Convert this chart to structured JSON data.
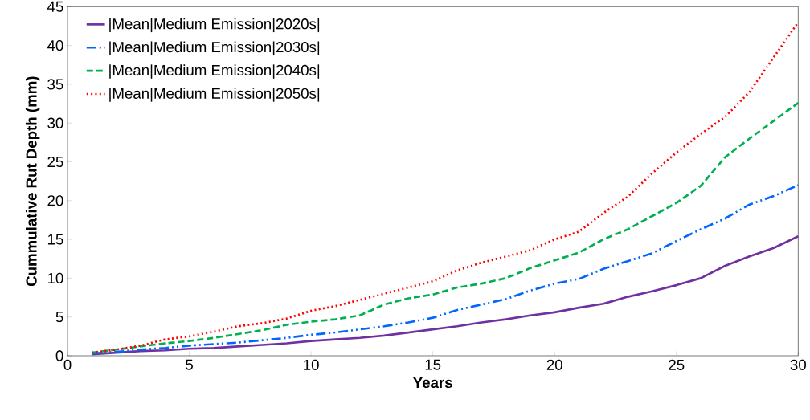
{
  "chart_data": {
    "type": "line",
    "xlabel": "Years",
    "ylabel": "Cummulative Rut Depth (mm)",
    "x": [
      1,
      2,
      3,
      4,
      5,
      6,
      7,
      8,
      9,
      10,
      11,
      12,
      13,
      14,
      15,
      16,
      17,
      18,
      19,
      20,
      21,
      22,
      23,
      24,
      25,
      26,
      27,
      28,
      29,
      30
    ],
    "series": [
      {
        "name": "|Mean|Medium Emission|2020s|",
        "color": "#7030a0",
        "line_style": "solid",
        "values": [
          0.2,
          0.4,
          0.6,
          0.7,
          0.9,
          1.0,
          1.2,
          1.4,
          1.6,
          1.9,
          2.1,
          2.3,
          2.6,
          3.0,
          3.4,
          3.8,
          4.3,
          4.7,
          5.2,
          5.6,
          6.2,
          6.7,
          7.6,
          8.3,
          9.1,
          10.0,
          11.6,
          12.8,
          13.9,
          15.4
        ]
      },
      {
        "name": "|Mean|Medium Emission|2030s|",
        "color": "#0066ff",
        "line_style": "dashdot",
        "values": [
          0.3,
          0.5,
          0.8,
          1.0,
          1.3,
          1.5,
          1.7,
          2.0,
          2.3,
          2.7,
          3.0,
          3.4,
          3.8,
          4.3,
          4.9,
          5.9,
          6.6,
          7.3,
          8.4,
          9.3,
          9.9,
          11.2,
          12.2,
          13.2,
          14.8,
          16.3,
          17.7,
          19.5,
          20.6,
          22.0
        ]
      },
      {
        "name": "|Mean|Medium Emission|2040s|",
        "color": "#00b050",
        "line_style": "dashed",
        "values": [
          0.4,
          0.8,
          1.2,
          1.6,
          1.9,
          2.3,
          2.8,
          3.3,
          4.0,
          4.4,
          4.7,
          5.2,
          6.6,
          7.4,
          7.9,
          8.8,
          9.3,
          10.0,
          11.3,
          12.3,
          13.3,
          15.0,
          16.3,
          18.0,
          19.7,
          21.9,
          25.6,
          28.0,
          30.3,
          32.6
        ]
      },
      {
        "name": "|Mean|Medium Emission|2050s|",
        "color": "#ff0000",
        "line_style": "dotted",
        "values": [
          0.4,
          0.8,
          1.3,
          2.1,
          2.5,
          3.1,
          3.8,
          4.2,
          4.8,
          5.8,
          6.4,
          7.2,
          8.0,
          8.8,
          9.6,
          11.0,
          12.0,
          12.8,
          13.6,
          15.0,
          16.0,
          18.4,
          20.5,
          23.5,
          26.2,
          28.6,
          30.8,
          34.0,
          38.5,
          43.0
        ]
      }
    ],
    "xlim": [
      0,
      30
    ],
    "xticks": [
      0,
      5,
      10,
      15,
      20,
      25,
      30
    ],
    "ylim": [
      0,
      45
    ],
    "yticks": [
      0,
      5,
      10,
      15,
      20,
      25,
      30,
      35,
      40,
      45
    ],
    "grid": false,
    "legend": "top left",
    "marker": "none"
  }
}
